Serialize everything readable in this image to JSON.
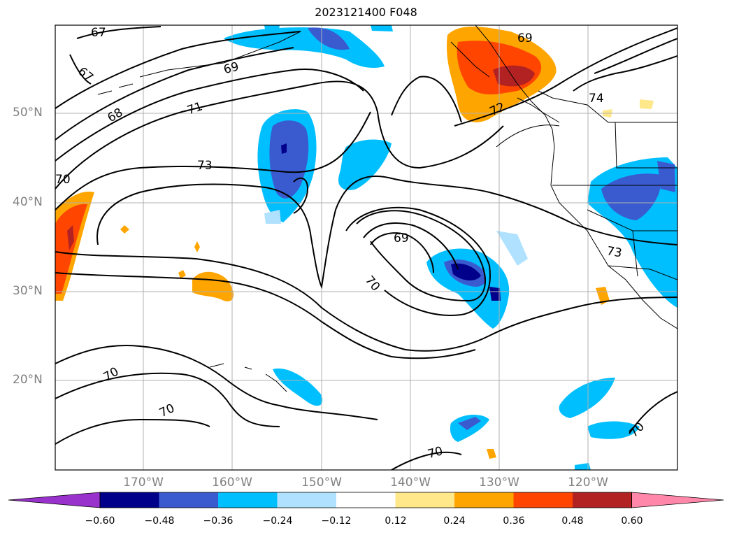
{
  "title": "2023121400 F048",
  "lat_labels": [
    "50°N",
    "40°N",
    "30°N",
    "20°N"
  ],
  "lon_labels": [
    "170°W",
    "160°W",
    "150°W",
    "140°W",
    "130°W",
    "120°W"
  ],
  "colorbar": {
    "ticks": [
      "−0.60",
      "−0.48",
      "−0.36",
      "−0.24",
      "−0.12",
      "0.12",
      "0.24",
      "0.36",
      "0.48",
      "0.60"
    ],
    "colors": [
      "#9932cc",
      "#00008b",
      "#3a5bd0",
      "#00bfff",
      "#b0e2ff",
      "#ffffff",
      "#ffe88a",
      "#ffa500",
      "#ff4500",
      "#b22222",
      "#ff88aa"
    ]
  },
  "contour_labels": [
    "67",
    "67",
    "68",
    "69",
    "69",
    "70",
    "71",
    "72",
    "73",
    "73",
    "74",
    "69",
    "70",
    "70",
    "70",
    "70",
    "70"
  ]
}
